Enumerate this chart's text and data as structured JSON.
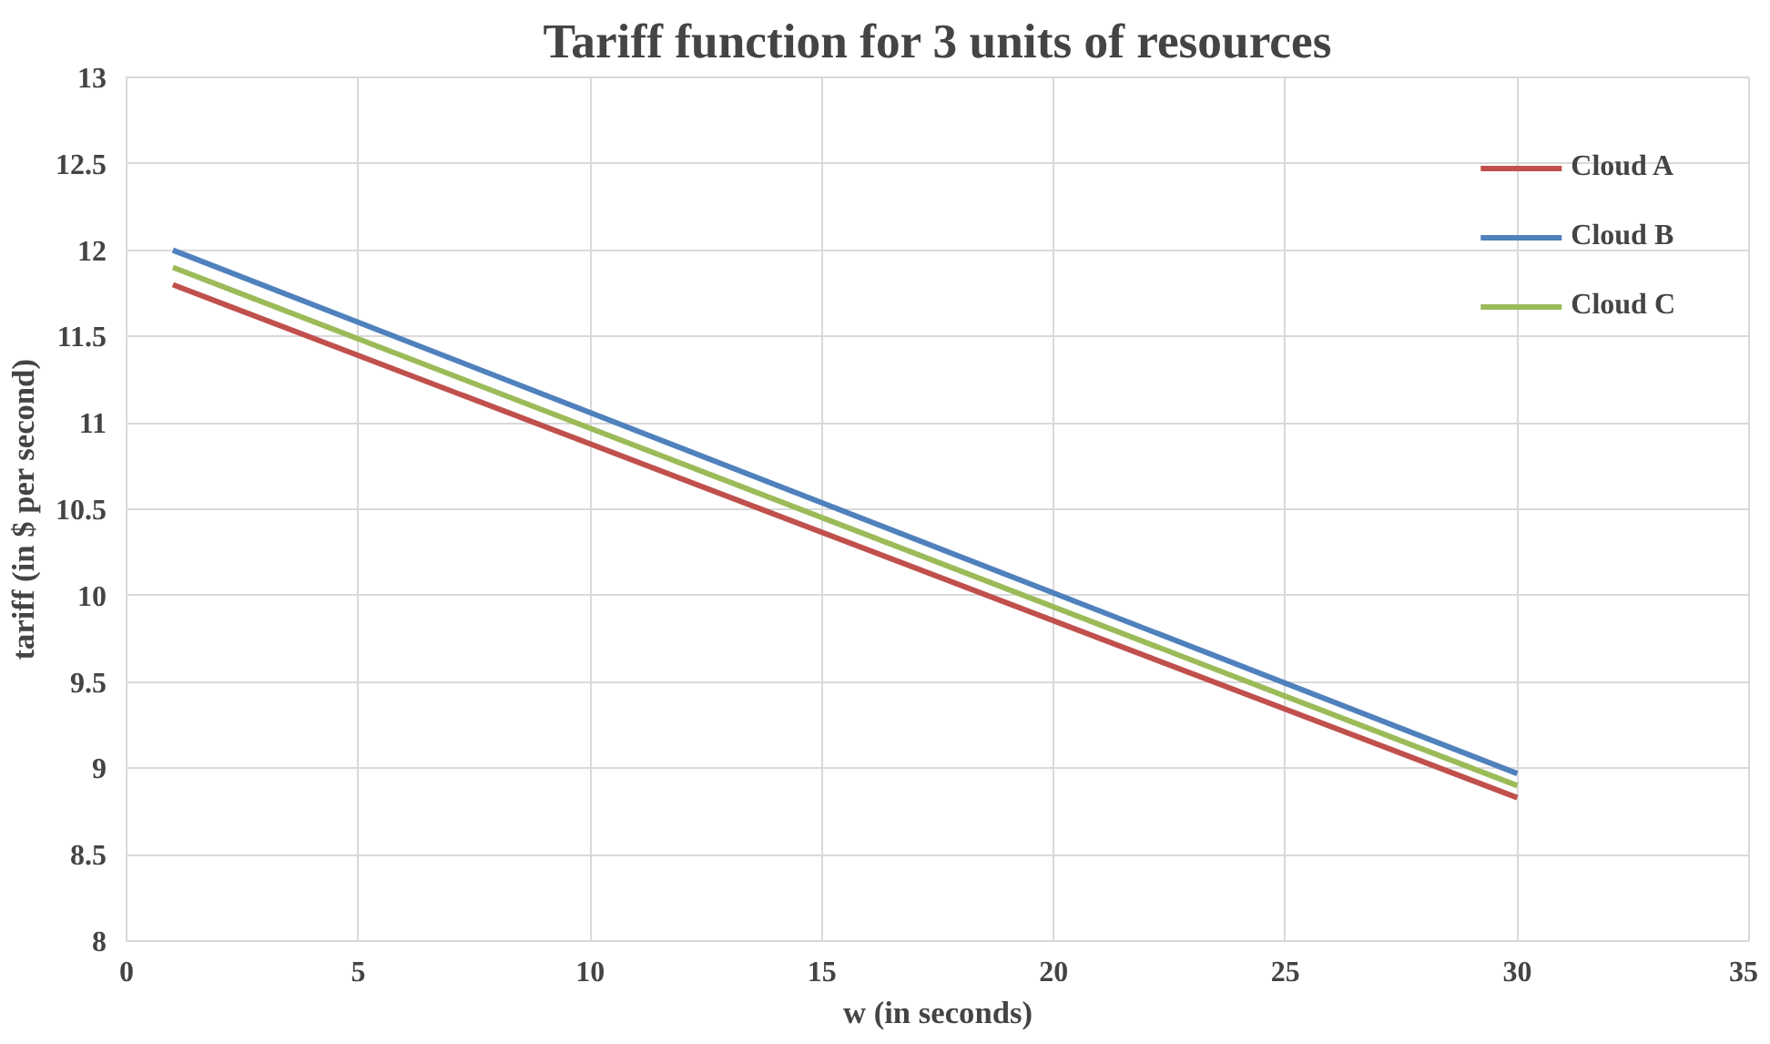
{
  "chart_data": {
    "type": "line",
    "title": "Tariff function for 3 units of resources",
    "xlabel": "w (in seconds)",
    "ylabel": "tariff (in $ per second)",
    "x": [
      1,
      30
    ],
    "series": [
      {
        "name": "Cloud A",
        "color": "#c0504d",
        "values": [
          11.8,
          8.83
        ]
      },
      {
        "name": "Cloud B",
        "color": "#4f81bd",
        "values": [
          12.0,
          8.97
        ]
      },
      {
        "name": "Cloud C",
        "color": "#9bbb59",
        "values": [
          11.9,
          8.9
        ]
      }
    ],
    "xlim": [
      0,
      35
    ],
    "xticks": [
      0,
      5,
      10,
      15,
      20,
      25,
      30,
      35
    ],
    "ylim": [
      8,
      13
    ],
    "yticks": [
      8,
      8.5,
      9,
      9.5,
      10,
      10.5,
      11,
      11.5,
      12,
      12.5,
      13
    ],
    "grid": true,
    "legend": "top right",
    "marker": "none",
    "line_style": "solid"
  }
}
